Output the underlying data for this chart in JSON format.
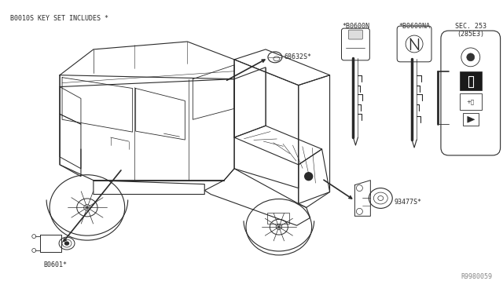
{
  "bg_color": "#ffffff",
  "fig_width": 6.4,
  "fig_height": 3.72,
  "dpi": 100,
  "header_text": "B0010S KEY SET INCLUDES *",
  "diagram_id": "R9980059",
  "label_68632": "68632S*",
  "label_b0601": "B0601*",
  "label_93477": "93477S*",
  "label_k1": "*B0600N",
  "label_k2": "*B0600NA",
  "label_k3_1": "SEC. 253",
  "label_k3_2": "(285E3)",
  "line_color": "#2a2a2a",
  "text_color": "#2a2a2a",
  "font_size": 6.0
}
